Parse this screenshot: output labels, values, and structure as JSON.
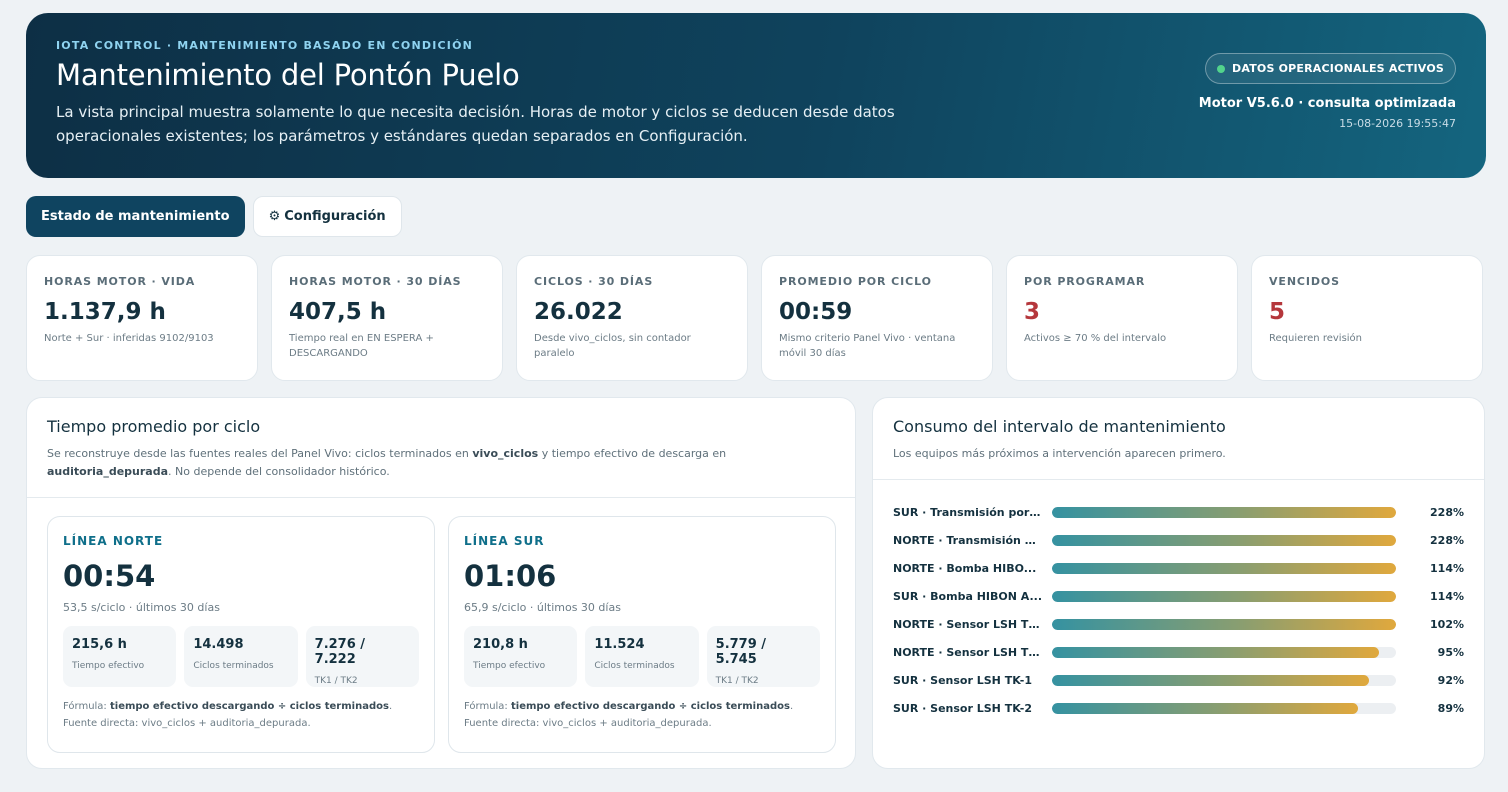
{
  "hero": {
    "eyebrow": "IOTA CONTROL · MANTENIMIENTO BASADO EN CONDICIÓN",
    "title": "Mantenimiento del Pontón Puelo",
    "description": "La vista principal muestra solamente lo que necesita decisión. Horas de motor y ciclos se deducen desde datos operacionales existentes; los parámetros y estándares quedan separados en Configuración.",
    "status_pill": "DATOS OPERACIONALES ACTIVOS",
    "engine": "Motor V5.6.0 · consulta optimizada",
    "timestamp": "15-08-2026 19:55:47",
    "status_color": "#52d48c"
  },
  "tabs": [
    {
      "label": "Estado de mantenimiento",
      "icon": "",
      "active": true
    },
    {
      "label": "Configuración",
      "icon": "gear-icon",
      "active": false
    }
  ],
  "kpis": [
    {
      "label": "HORAS MOTOR · VIDA",
      "value": "1.137,9 h",
      "sub": "Norte + Sur · inferidas 9102/9103",
      "alert": false
    },
    {
      "label": "HORAS MOTOR · 30 DÍAS",
      "value": "407,5 h",
      "sub": "Tiempo real en EN ESPERA + DESCARGANDO",
      "alert": false
    },
    {
      "label": "CICLOS · 30 DÍAS",
      "value": "26.022",
      "sub": "Desde vivo_ciclos, sin contador paralelo",
      "alert": false
    },
    {
      "label": "PROMEDIO POR CICLO",
      "value": "00:59",
      "sub": "Mismo criterio Panel Vivo · ventana móvil 30 días",
      "alert": false
    },
    {
      "label": "POR PROGRAMAR",
      "value": "3",
      "sub": "Activos ≥ 70 % del intervalo",
      "alert": true
    },
    {
      "label": "VENCIDOS",
      "value": "5",
      "sub": "Requieren revisión",
      "alert": true
    }
  ],
  "cycle_card": {
    "title": "Tiempo promedio por ciclo",
    "desc_1": "Se reconstruye desde las fuentes reales del Panel Vivo: ciclos terminados en ",
    "desc_b1": "vivo_ciclos",
    "desc_2": " y tiempo efectivo de descarga en ",
    "desc_b2": "auditoria_depurada",
    "desc_3": ". No depende del consolidador histórico.",
    "lines": [
      {
        "name": "LÍNEA NORTE",
        "avg": "00:54",
        "rate": "53,5 s/ciclo · últimos 30 días",
        "stats": [
          {
            "value": "215,6 h",
            "label": "Tiempo efectivo"
          },
          {
            "value": "14.498",
            "label": "Ciclos terminados"
          },
          {
            "value": "7.276 / 7.222",
            "label": "TK1 / TK2"
          }
        ],
        "formula_lead": "Fórmula: ",
        "formula_bold": "tiempo efectivo descargando ÷ ciclos terminados",
        "formula_tail": ". Fuente directa: vivo_ciclos + auditoria_depurada."
      },
      {
        "name": "LÍNEA SUR",
        "avg": "01:06",
        "rate": "65,9 s/ciclo · últimos 30 días",
        "stats": [
          {
            "value": "210,8 h",
            "label": "Tiempo efectivo"
          },
          {
            "value": "11.524",
            "label": "Ciclos terminados"
          },
          {
            "value": "5.779 / 5.745",
            "label": "TK1 / TK2"
          }
        ],
        "formula_lead": "Fórmula: ",
        "formula_bold": "tiempo efectivo descargando ÷ ciclos terminados",
        "formula_tail": ". Fuente directa: vivo_ciclos + auditoria_depurada."
      }
    ]
  },
  "interval_card": {
    "title": "Consumo del intervalo de mantenimiento",
    "desc": "Los equipos más próximos a intervención aparecen primero.",
    "items": [
      {
        "label": "SUR · Transmisión por ...",
        "pct_text": "228%",
        "pct": 228
      },
      {
        "label": "NORTE · Transmisión p...",
        "pct_text": "228%",
        "pct": 228
      },
      {
        "label": "NORTE · Bomba HIBO...",
        "pct_text": "114%",
        "pct": 114
      },
      {
        "label": "SUR · Bomba HIBON A...",
        "pct_text": "114%",
        "pct": 114
      },
      {
        "label": "NORTE · Sensor LSH TK-1",
        "pct_text": "102%",
        "pct": 102
      },
      {
        "label": "NORTE · Sensor LSH TK-2",
        "pct_text": "95%",
        "pct": 95
      },
      {
        "label": "SUR · Sensor LSH TK-1",
        "pct_text": "92%",
        "pct": 92
      },
      {
        "label": "SUR · Sensor LSH TK-2",
        "pct_text": "89%",
        "pct": 89
      }
    ]
  }
}
